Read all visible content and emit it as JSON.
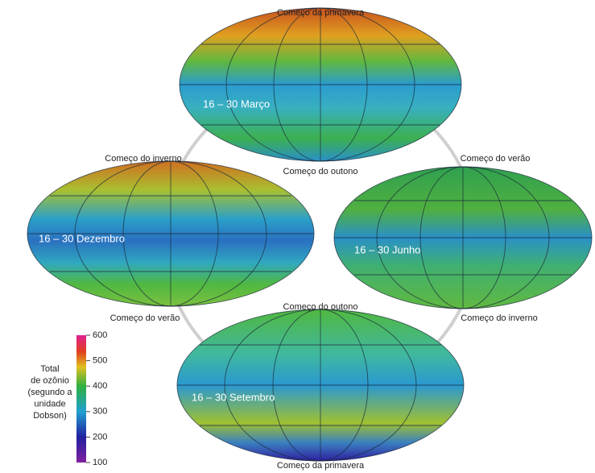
{
  "season_labels": [
    "Começo da primavera",
    "Começo do inverno",
    "Começo do outono",
    "Começo do verão",
    "Começo do verão",
    "Começo do outono",
    "Começo do inverno",
    "Começo da primavera"
  ],
  "maps": [
    "16 – 30 Março",
    "16 – 30 Dezembro",
    "16 – 30 Junho",
    "16 – 30 Setembro"
  ],
  "legend": {
    "title_lines": [
      "Total",
      "de ozônio",
      "(segundo a",
      "unidade",
      "Dobson)"
    ],
    "ticks": [
      600,
      500,
      400,
      300,
      200,
      100
    ]
  }
}
